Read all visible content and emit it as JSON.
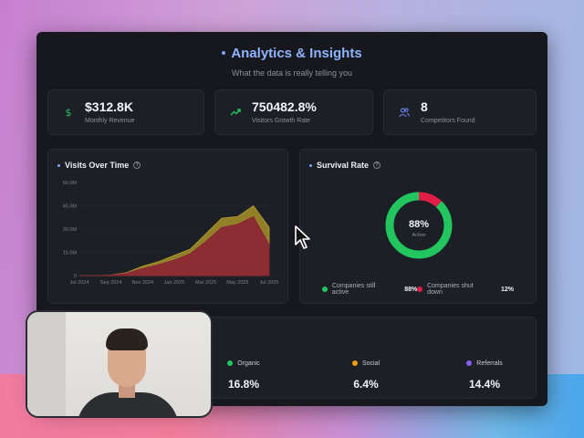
{
  "header": {
    "title": "Analytics & Insights",
    "subtitle": "What the data is really telling you"
  },
  "kpis": [
    {
      "value": "$312.8K",
      "label": "Monthly Revenue",
      "icon": "dollar-icon",
      "color": "#22c55e"
    },
    {
      "value": "750482.8%",
      "label": "Visitors Growth Rate",
      "icon": "trending-up-icon",
      "color": "#22c55e"
    },
    {
      "value": "8",
      "label": "Competitors Found",
      "icon": "users-icon",
      "color": "#6b8cff"
    }
  ],
  "visits_card": {
    "title": "Visits Over Time",
    "help": "?"
  },
  "survival_card": {
    "title": "Survival Rate",
    "help": "?",
    "center_value": "88%",
    "center_label": "Active",
    "legend": [
      {
        "label": "Companies still active",
        "value": "88%",
        "color": "#22c55e"
      },
      {
        "label": "Companies shut down",
        "value": "12%",
        "color": "#e11d48"
      }
    ]
  },
  "traffic_sources": [
    {
      "label": "Organic",
      "value": "16.8%",
      "color": "#22c55e"
    },
    {
      "label": "Social",
      "value": "6.4%",
      "color": "#f59e0b"
    },
    {
      "label": "Referrals",
      "value": "14.4%",
      "color": "#8b5cf6"
    }
  ],
  "chart_data": [
    {
      "type": "area",
      "title": "Visits Over Time",
      "x": [
        "Jul 2024",
        "Aug 2024",
        "Sep 2024",
        "Oct 2024",
        "Nov 2024",
        "Dec 2024",
        "Jan 2025",
        "Feb 2025",
        "Mar 2025",
        "Apr 2025",
        "May 2025",
        "Jun 2025",
        "Jul 2025"
      ],
      "tick_labels_x": [
        "Jul 2024",
        "Sep 2024",
        "Nov 2024",
        "Jan 2025",
        "Mar 2025",
        "May 2025",
        "Jul 2025"
      ],
      "tick_labels_y": [
        "0",
        "15.0M",
        "30.0M",
        "45.0M",
        "60.0M"
      ],
      "ylim": [
        0,
        60000000
      ],
      "series": [
        {
          "values": [
            0,
            0,
            300000,
            2000000,
            6000000,
            9000000,
            13000000,
            17000000,
            27000000,
            37000000,
            38000000,
            45000000,
            31000000
          ],
          "color": "#b8a12a"
        },
        {
          "values": [
            0,
            0,
            200000,
            1500000,
            4500000,
            7000000,
            10000000,
            14000000,
            22000000,
            31000000,
            33000000,
            38000000,
            20000000
          ],
          "color": "#8a1e35"
        }
      ]
    },
    {
      "type": "pie",
      "title": "Survival Rate",
      "categories": [
        "Companies still active",
        "Companies shut down"
      ],
      "values": [
        88,
        12
      ],
      "colors": [
        "#22c55e",
        "#e11d48"
      ]
    }
  ]
}
